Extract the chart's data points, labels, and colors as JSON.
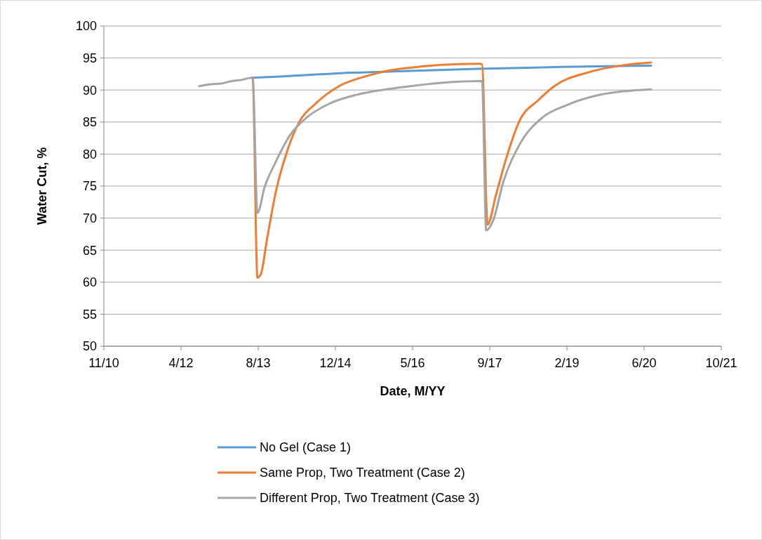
{
  "chart_data": {
    "type": "line",
    "xlabel": "Date, M/YY",
    "ylabel": "Water Cut, %",
    "xlim": [
      "2010-11-18",
      "2021-10-31"
    ],
    "xticks": [
      {
        "value": "2010-11-18",
        "label": "11/10"
      },
      {
        "value": "2012-04-01",
        "label": "4/12"
      },
      {
        "value": "2013-08-14",
        "label": "8/13"
      },
      {
        "value": "2014-12-27",
        "label": "12/14"
      },
      {
        "value": "2016-05-10",
        "label": "5/16"
      },
      {
        "value": "2017-09-22",
        "label": "9/17"
      },
      {
        "value": "2019-02-04",
        "label": "2/19"
      },
      {
        "value": "2020-06-18",
        "label": "6/20"
      },
      {
        "value": "2021-10-31",
        "label": "10/21"
      }
    ],
    "ylim": [
      50,
      100
    ],
    "yticks": [
      50,
      55,
      60,
      65,
      70,
      75,
      80,
      85,
      90,
      95,
      100
    ],
    "grid": "y",
    "legend": "bottom",
    "marker": "none",
    "line_style": "solid",
    "series": [
      {
        "name": "No Gel (Case 1)",
        "color": "#5b9bd5",
        "x": [
          "2013-06-30",
          "2014-01-06",
          "2015-01-05",
          "2016-01-04",
          "2017-07-02",
          "2018-12-30",
          "2020-08-02"
        ],
        "values": [
          91.9,
          92.1,
          92.6,
          92.9,
          93.3,
          93.6,
          93.8
        ]
      },
      {
        "name": "Same Prop, Two Treatment (Case 2)",
        "color": "#ed7d31",
        "x": [
          "2013-06-30",
          "2013-07-09",
          "2013-08-09",
          "2013-09-01",
          "2013-10-08",
          "2013-12-06",
          "2014-02-21",
          "2014-05-09",
          "2014-08-22",
          "2015-01-19",
          "2015-07-20",
          "2016-02-18",
          "2017-07-16",
          "2017-08-03",
          "2017-09-08",
          "2017-11-02",
          "2018-01-14",
          "2018-04-01",
          "2018-08-02",
          "2018-11-14",
          "2019-06-29",
          "2020-02-12",
          "2020-08-02"
        ],
        "values": [
          91.9,
          91.9,
          60.7,
          61.3,
          66.4,
          74.1,
          80.7,
          85.1,
          87.9,
          90.6,
          92.2,
          93.3,
          94.1,
          94.0,
          69.0,
          73.7,
          79.9,
          85.1,
          88.4,
          90.6,
          92.8,
          93.9,
          94.3
        ]
      },
      {
        "name": "Different Prop, Two Treatment (Case 3)",
        "color": "#a5a5a5",
        "x": [
          "2012-07-28",
          "2012-10-09",
          "2012-12-16",
          "2013-02-22",
          "2013-05-01",
          "2013-06-30",
          "2013-07-09",
          "2013-08-09",
          "2013-09-24",
          "2013-12-06",
          "2014-03-07",
          "2014-06-24",
          "2014-11-21",
          "2015-05-21",
          "2016-02-18",
          "2017-07-16",
          "2017-08-03",
          "2017-08-30",
          "2017-10-15",
          "2017-12-17",
          "2018-04-01",
          "2018-08-29",
          "2019-01-30",
          "2019-09-15",
          "2020-08-02"
        ],
        "values": [
          90.6,
          90.9,
          91.0,
          91.4,
          91.6,
          91.9,
          91.9,
          70.8,
          74.8,
          78.8,
          82.9,
          85.7,
          87.9,
          89.3,
          90.4,
          91.4,
          91.4,
          68.1,
          69.7,
          75.5,
          81.4,
          85.7,
          87.6,
          89.3,
          90.1
        ]
      }
    ]
  }
}
